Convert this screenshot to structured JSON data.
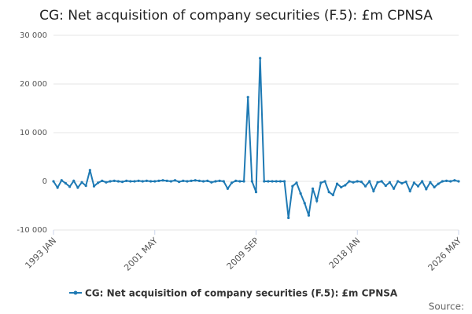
{
  "chart_data": {
    "type": "line",
    "title": "CG: Net acquisition of company securities (F.5): £m CPNSA",
    "categories": [
      "1993 JAN",
      null,
      null,
      null,
      null,
      null,
      null,
      null,
      null,
      null,
      null,
      null,
      null,
      null,
      null,
      null,
      null,
      null,
      null,
      null,
      null,
      null,
      null,
      null,
      null,
      "2001 MAY",
      null,
      null,
      null,
      null,
      null,
      null,
      null,
      null,
      null,
      null,
      null,
      null,
      null,
      null,
      null,
      null,
      null,
      null,
      null,
      null,
      null,
      null,
      null,
      null,
      "2009 SEP",
      null,
      null,
      null,
      null,
      null,
      null,
      null,
      null,
      null,
      null,
      null,
      null,
      null,
      null,
      null,
      null,
      null,
      null,
      null,
      null,
      null,
      null,
      null,
      null,
      "2018 JAN",
      null,
      null,
      null,
      null,
      null,
      null,
      null,
      null,
      null,
      null,
      null,
      null,
      null,
      null,
      null,
      null,
      null,
      null,
      null,
      null,
      null,
      null,
      null,
      null,
      "2026 MAY"
    ],
    "series": [
      {
        "name": "CG: Net acquisition of company securities (F.5): £m CPNSA",
        "color": "#1f7ab4",
        "values": [
          0,
          -1300,
          200,
          -400,
          -1100,
          100,
          -1300,
          -200,
          -900,
          2300,
          -1000,
          -300,
          100,
          -200,
          0,
          100,
          0,
          -100,
          100,
          0,
          0,
          100,
          0,
          100,
          0,
          0,
          100,
          200,
          100,
          0,
          200,
          -100,
          100,
          0,
          100,
          200,
          100,
          0,
          100,
          -200,
          0,
          100,
          0,
          -1500,
          -300,
          100,
          0,
          0,
          17300,
          0,
          -2200,
          25300,
          0,
          0,
          0,
          0,
          0,
          0,
          -7500,
          -1000,
          -300,
          -2500,
          -4500,
          -7000,
          -1500,
          -4000,
          -300,
          0,
          -2200,
          -2800,
          -500,
          -1200,
          -800,
          0,
          -200,
          0,
          -100,
          -1000,
          0,
          -2000,
          -200,
          0,
          -900,
          -200,
          -1500,
          0,
          -400,
          -100,
          -2000,
          -300,
          -1000,
          0,
          -1600,
          -200,
          -1200,
          -500,
          0,
          100,
          0,
          200,
          0
        ]
      }
    ],
    "ylim": [
      -10000,
      30000
    ],
    "yticks": [
      {
        "value": -10000,
        "label": "-10 000"
      },
      0,
      {
        "value": 10000,
        "label": "10 000"
      },
      {
        "value": 20000,
        "label": "20 000"
      },
      {
        "value": 30000,
        "label": "30 000"
      }
    ],
    "grid": true,
    "source": "Source:"
  }
}
